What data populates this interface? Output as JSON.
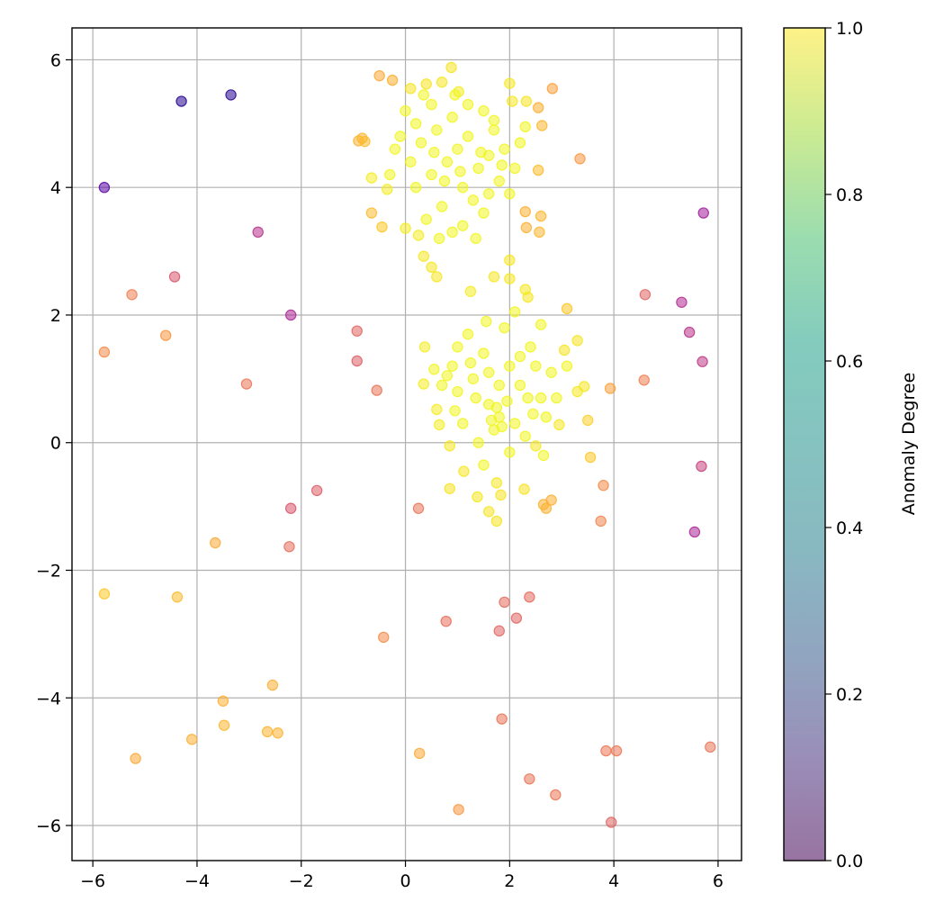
{
  "chart_data": {
    "type": "scatter",
    "title": "",
    "xlabel": "",
    "ylabel": "",
    "xlim": [
      -6.4,
      6.45
    ],
    "ylim": [
      -6.55,
      6.5
    ],
    "xticks": [
      -6,
      -4,
      -2,
      0,
      2,
      4,
      6
    ],
    "yticks": [
      -6,
      -4,
      -2,
      0,
      2,
      4,
      6
    ],
    "grid": true,
    "marker_alpha": 0.55,
    "colormap": "plasma",
    "colorbar": {
      "label": "Anomaly Degree",
      "colormap": "viridis",
      "range": [
        0,
        1
      ],
      "ticks": [
        "0.0",
        "0.2",
        "0.4",
        "0.6",
        "0.8",
        "1.0"
      ],
      "alpha": 0.55
    },
    "note_points": "Each point is [x, y, anomaly_degree]",
    "points": [
      [
        -4.3,
        5.35,
        0.05
      ],
      [
        -3.35,
        5.45,
        0.05
      ],
      [
        -5.78,
        4.0,
        0.15
      ],
      [
        5.72,
        3.6,
        0.35
      ],
      [
        -2.83,
        3.3,
        0.42
      ],
      [
        -2.2,
        2.0,
        0.38
      ],
      [
        5.3,
        2.2,
        0.4
      ],
      [
        5.45,
        1.73,
        0.43
      ],
      [
        5.7,
        1.27,
        0.45
      ],
      [
        5.68,
        -0.37,
        0.48
      ],
      [
        5.55,
        -1.4,
        0.38
      ],
      [
        -4.43,
        2.6,
        0.55
      ],
      [
        -0.93,
        1.75,
        0.6
      ],
      [
        -0.93,
        1.28,
        0.58
      ],
      [
        -1.7,
        -0.75,
        0.58
      ],
      [
        -2.2,
        -1.03,
        0.55
      ],
      [
        -5.25,
        2.32,
        0.68
      ],
      [
        -5.78,
        1.42,
        0.72
      ],
      [
        -4.6,
        1.68,
        0.75
      ],
      [
        -3.05,
        0.92,
        0.65
      ],
      [
        -0.55,
        0.82,
        0.65
      ],
      [
        -2.23,
        -1.63,
        0.63
      ],
      [
        4.6,
        2.32,
        0.6
      ],
      [
        4.58,
        0.98,
        0.68
      ],
      [
        3.93,
        0.85,
        0.78
      ],
      [
        3.8,
        -0.67,
        0.72
      ],
      [
        3.75,
        -1.23,
        0.7
      ],
      [
        0.25,
        -1.03,
        0.65
      ],
      [
        0.78,
        -2.8,
        0.63
      ],
      [
        1.9,
        -2.5,
        0.62
      ],
      [
        2.38,
        -2.42,
        0.62
      ],
      [
        2.13,
        -2.75,
        0.6
      ],
      [
        1.8,
        -2.95,
        0.6
      ],
      [
        -0.42,
        -3.05,
        0.72
      ],
      [
        1.85,
        -4.33,
        0.65
      ],
      [
        3.85,
        -4.83,
        0.66
      ],
      [
        4.05,
        -4.83,
        0.66
      ],
      [
        5.85,
        -4.77,
        0.65
      ],
      [
        2.38,
        -5.27,
        0.65
      ],
      [
        2.88,
        -5.52,
        0.66
      ],
      [
        3.95,
        -5.95,
        0.6
      ],
      [
        -3.65,
        -1.57,
        0.8
      ],
      [
        -5.78,
        -2.37,
        0.88
      ],
      [
        -4.38,
        -2.42,
        0.85
      ],
      [
        -2.55,
        -3.8,
        0.82
      ],
      [
        -3.5,
        -4.05,
        0.82
      ],
      [
        -3.48,
        -4.43,
        0.84
      ],
      [
        -4.1,
        -4.65,
        0.82
      ],
      [
        -2.65,
        -4.53,
        0.83
      ],
      [
        -2.45,
        -4.55,
        0.83
      ],
      [
        -5.18,
        -4.95,
        0.8
      ],
      [
        0.27,
        -4.87,
        0.8
      ],
      [
        1.02,
        -5.75,
        0.75
      ],
      [
        -0.5,
        5.75,
        0.8
      ],
      [
        -0.25,
        5.68,
        0.82
      ],
      [
        2.82,
        5.55,
        0.78
      ],
      [
        2.55,
        5.25,
        0.82
      ],
      [
        2.62,
        4.97,
        0.84
      ],
      [
        3.35,
        4.45,
        0.75
      ],
      [
        2.55,
        4.27,
        0.85
      ],
      [
        2.3,
        3.62,
        0.82
      ],
      [
        2.6,
        3.55,
        0.84
      ],
      [
        2.32,
        3.37,
        0.82
      ],
      [
        2.57,
        3.3,
        0.84
      ],
      [
        -0.65,
        3.6,
        0.85
      ],
      [
        -0.45,
        3.38,
        0.88
      ],
      [
        -0.9,
        4.73,
        0.83
      ],
      [
        -0.78,
        4.72,
        0.85
      ],
      [
        -0.83,
        4.77,
        0.84
      ],
      [
        2.65,
        -0.97,
        0.82
      ],
      [
        2.7,
        -1.03,
        0.83
      ],
      [
        2.8,
        -0.9,
        0.82
      ],
      [
        3.1,
        2.1,
        0.88
      ],
      [
        3.5,
        0.35,
        0.9
      ],
      [
        3.55,
        -0.23,
        0.88
      ],
      [
        0.1,
        5.55,
        0.95
      ],
      [
        0.4,
        5.62,
        0.95
      ],
      [
        0.7,
        5.65,
        0.96
      ],
      [
        0.88,
        5.88,
        0.95
      ],
      [
        1.02,
        5.5,
        0.97
      ],
      [
        2.0,
        5.63,
        0.96
      ],
      [
        2.05,
        5.35,
        0.96
      ],
      [
        2.32,
        5.35,
        0.95
      ],
      [
        -0.65,
        4.15,
        0.97
      ],
      [
        -0.35,
        3.97,
        0.97
      ],
      [
        0.0,
        3.36,
        0.97
      ],
      [
        0.25,
        3.25,
        0.97
      ],
      [
        0.35,
        2.92,
        0.96
      ],
      [
        0.5,
        2.75,
        0.96
      ],
      [
        0.6,
        2.6,
        0.96
      ],
      [
        1.7,
        2.6,
        0.96
      ],
      [
        2.0,
        2.86,
        0.96
      ],
      [
        2.0,
        2.57,
        0.96
      ],
      [
        1.25,
        2.37,
        0.97
      ],
      [
        2.3,
        2.4,
        0.96
      ],
      [
        2.35,
        2.28,
        0.96
      ],
      [
        0.37,
        1.5,
        0.97
      ],
      [
        0.35,
        0.92,
        0.97
      ],
      [
        0.6,
        0.52,
        0.97
      ],
      [
        0.65,
        0.28,
        0.97
      ],
      [
        0.85,
        -0.05,
        0.96
      ],
      [
        0.85,
        -0.72,
        0.95
      ],
      [
        1.12,
        -0.45,
        0.96
      ],
      [
        1.38,
        -0.85,
        0.96
      ],
      [
        1.6,
        -1.08,
        0.95
      ],
      [
        1.75,
        -1.23,
        0.95
      ],
      [
        1.75,
        -0.63,
        0.96
      ],
      [
        1.83,
        -0.82,
        0.95
      ],
      [
        2.28,
        -0.73,
        0.95
      ],
      [
        2.5,
        -0.05,
        0.96
      ],
      [
        2.95,
        0.28,
        0.96
      ],
      [
        3.05,
        1.45,
        0.95
      ],
      [
        3.3,
        1.6,
        0.95
      ],
      [
        3.3,
        0.8,
        0.96
      ],
      [
        3.43,
        0.88,
        0.96
      ],
      [
        0.5,
        4.2,
        0.99
      ],
      [
        0.8,
        4.4,
        0.99
      ],
      [
        1.0,
        4.6,
        0.99
      ],
      [
        1.2,
        4.8,
        0.99
      ],
      [
        1.4,
        4.3,
        0.99
      ],
      [
        1.6,
        4.5,
        0.99
      ],
      [
        1.8,
        4.1,
        0.99
      ],
      [
        0.3,
        4.7,
        0.99
      ],
      [
        0.6,
        4.9,
        0.99
      ],
      [
        0.9,
        5.1,
        0.99
      ],
      [
        1.1,
        4.0,
        0.99
      ],
      [
        1.3,
        3.8,
        0.99
      ],
      [
        1.5,
        3.6,
        0.99
      ],
      [
        0.7,
        3.7,
        0.99
      ],
      [
        0.4,
        3.5,
        0.99
      ],
      [
        0.2,
        4.0,
        0.99
      ],
      [
        0.1,
        4.4,
        0.99
      ],
      [
        1.9,
        4.6,
        0.99
      ],
      [
        1.7,
        4.9,
        0.99
      ],
      [
        1.5,
        5.2,
        0.99
      ],
      [
        1.2,
        5.3,
        0.99
      ],
      [
        0.5,
        5.3,
        0.99
      ],
      [
        0.2,
        5.0,
        0.99
      ],
      [
        2.1,
        4.3,
        0.99
      ],
      [
        2.0,
        3.9,
        0.99
      ],
      [
        0.9,
        3.3,
        0.99
      ],
      [
        1.1,
        3.4,
        0.99
      ],
      [
        0.75,
        4.1,
        0.99
      ],
      [
        1.45,
        4.55,
        0.99
      ],
      [
        1.05,
        4.25,
        0.99
      ],
      [
        0.55,
        4.55,
        0.99
      ],
      [
        1.85,
        4.35,
        0.99
      ],
      [
        -0.2,
        4.6,
        0.99
      ],
      [
        -0.1,
        4.8,
        0.99
      ],
      [
        0.0,
        5.2,
        0.99
      ],
      [
        0.65,
        3.2,
        0.99
      ],
      [
        1.35,
        3.2,
        0.99
      ],
      [
        1.6,
        3.9,
        0.99
      ],
      [
        2.2,
        4.7,
        0.99
      ],
      [
        2.3,
        4.95,
        0.99
      ],
      [
        0.35,
        5.45,
        0.99
      ],
      [
        0.95,
        5.45,
        0.99
      ],
      [
        1.7,
        5.05,
        0.99
      ],
      [
        -0.3,
        4.2,
        0.99
      ],
      [
        1.0,
        0.8,
        0.99
      ],
      [
        1.3,
        1.0,
        0.99
      ],
      [
        1.6,
        0.6,
        0.99
      ],
      [
        1.8,
        0.4,
        0.99
      ],
      [
        2.0,
        1.2,
        0.99
      ],
      [
        2.2,
        0.9,
        0.99
      ],
      [
        2.4,
        1.5,
        0.99
      ],
      [
        2.6,
        0.7,
        0.99
      ],
      [
        1.5,
        1.4,
        0.99
      ],
      [
        1.2,
        1.7,
        0.99
      ],
      [
        0.9,
        1.2,
        0.99
      ],
      [
        0.7,
        0.9,
        0.99
      ],
      [
        1.9,
        1.8,
        0.99
      ],
      [
        2.1,
        0.3,
        0.99
      ],
      [
        2.3,
        0.1,
        0.99
      ],
      [
        1.7,
        0.2,
        0.99
      ],
      [
        1.4,
        0.0,
        0.99
      ],
      [
        1.1,
        0.3,
        0.99
      ],
      [
        2.8,
        1.1,
        0.99
      ],
      [
        2.7,
        0.4,
        0.99
      ],
      [
        1.6,
        1.1,
        0.99
      ],
      [
        1.8,
        0.9,
        0.99
      ],
      [
        1.75,
        0.55,
        0.99
      ],
      [
        1.85,
        0.25,
        0.99
      ],
      [
        1.95,
        0.65,
        0.99
      ],
      [
        1.65,
        0.35,
        0.99
      ],
      [
        2.5,
        1.2,
        0.99
      ],
      [
        2.2,
        1.35,
        0.99
      ],
      [
        1.35,
        0.7,
        0.99
      ],
      [
        1.0,
        1.5,
        0.99
      ],
      [
        0.55,
        1.15,
        0.99
      ],
      [
        0.8,
        1.05,
        0.99
      ],
      [
        2.9,
        0.7,
        0.99
      ],
      [
        2.45,
        0.45,
        0.99
      ],
      [
        2.6,
        1.85,
        0.99
      ],
      [
        2.1,
        2.05,
        0.99
      ],
      [
        1.55,
        1.9,
        0.99
      ],
      [
        1.25,
        1.25,
        0.99
      ],
      [
        0.95,
        0.5,
        0.99
      ],
      [
        2.0,
        -0.15,
        0.99
      ],
      [
        1.5,
        -0.35,
        0.99
      ],
      [
        2.65,
        -0.2,
        0.99
      ],
      [
        3.1,
        1.2,
        0.99
      ],
      [
        2.35,
        0.7,
        0.99
      ]
    ]
  }
}
